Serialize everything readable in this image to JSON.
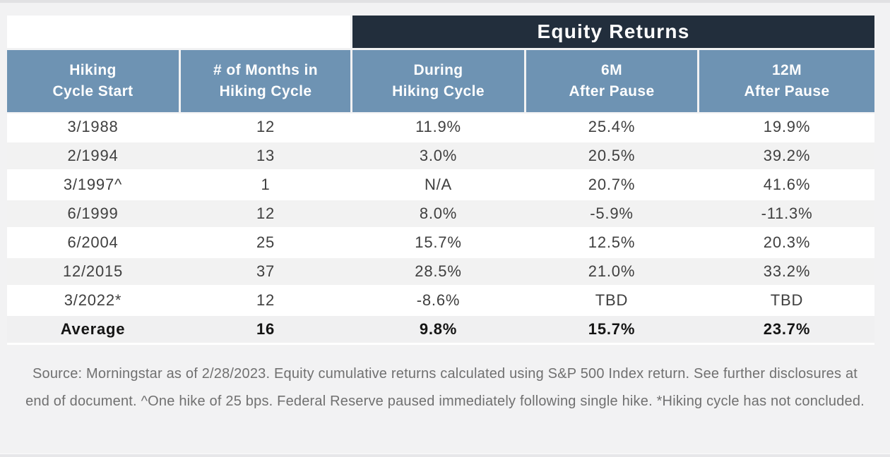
{
  "chart_data": {
    "type": "table",
    "group_header": "Equity Returns",
    "group_header_spans_columns": [
      "During Hiking Cycle",
      "6M After Pause",
      "12M After Pause"
    ],
    "columns": [
      {
        "line1": "Hiking",
        "line2": "Cycle Start"
      },
      {
        "line1": "# of Months in",
        "line2": "Hiking Cycle"
      },
      {
        "line1": "During",
        "line2": "Hiking Cycle"
      },
      {
        "line1": "6M",
        "line2": "After Pause"
      },
      {
        "line1": "12M",
        "line2": "After Pause"
      }
    ],
    "rows": [
      [
        "3/1988",
        "12",
        "11.9%",
        "25.4%",
        "19.9%"
      ],
      [
        "2/1994",
        "13",
        "3.0%",
        "20.5%",
        "39.2%"
      ],
      [
        "3/1997^",
        "1",
        "N/A",
        "20.7%",
        "41.6%"
      ],
      [
        "6/1999",
        "12",
        "8.0%",
        "-5.9%",
        "-11.3%"
      ],
      [
        "6/2004",
        "25",
        "15.7%",
        "12.5%",
        "20.3%"
      ],
      [
        "12/2015",
        "37",
        "28.5%",
        "21.0%",
        "33.2%"
      ],
      [
        "3/2022*",
        "12",
        "-8.6%",
        "TBD",
        "TBD"
      ]
    ],
    "average_row": [
      "Average",
      "16",
      "9.8%",
      "15.7%",
      "23.7%"
    ],
    "footnote": "Source: Morningstar as of 2/28/2023. Equity cumulative returns calculated using S&P 500 Index return. See further disclosures at end of document. ^One hike of 25 bps. Federal Reserve paused immediately following single hike. *Hiking cycle has not concluded.",
    "colors": {
      "group_band": "#222e3c",
      "header_blue": "#6e93b3",
      "stripe_gray": "#f2f2f2",
      "body_text": "#3f3f3f",
      "footnote_text": "#707070"
    }
  }
}
